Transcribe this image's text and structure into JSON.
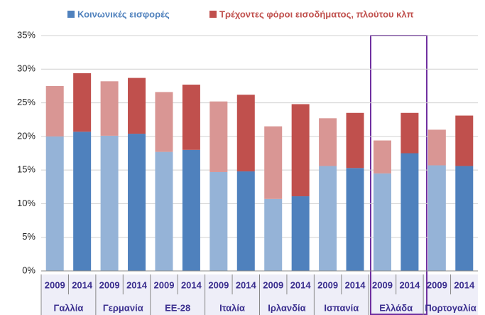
{
  "chart_data": {
    "type": "stacked_bar",
    "categories": [
      "2009",
      "2014",
      "2009",
      "2014",
      "2009",
      "2014",
      "2009",
      "2014",
      "2009",
      "2014",
      "2009",
      "2014",
      "2009",
      "2014",
      "2009",
      "2014"
    ],
    "groups": [
      "Γαλλία",
      "Γερμανία",
      "ΕΕ-28",
      "Ιταλία",
      "Ιρλανδία",
      "Ισπανία",
      "Ελλάδα",
      "Πορτογαλία"
    ],
    "series": [
      {
        "name": "Κοινωνικές εισφορές",
        "color": "#4f81bd",
        "colors": [
          "#95b3d7",
          "#4f81bd",
          "#95b3d7",
          "#4f81bd",
          "#95b3d7",
          "#4f81bd",
          "#95b3d7",
          "#4f81bd",
          "#95b3d7",
          "#4f81bd",
          "#95b3d7",
          "#4f81bd",
          "#95b3d7",
          "#4f81bd",
          "#95b3d7",
          "#4f81bd"
        ],
        "values": [
          20.0,
          20.7,
          20.1,
          20.4,
          17.7,
          18.0,
          14.7,
          14.8,
          10.7,
          11.1,
          15.6,
          15.3,
          14.5,
          17.5,
          15.7,
          15.6
        ]
      },
      {
        "name": "Τρέχοντες φόροι εισοδήματος, πλούτου κλπ",
        "color": "#c0504d",
        "colors": [
          "#d99694",
          "#c0504d",
          "#d99694",
          "#c0504d",
          "#d99694",
          "#c0504d",
          "#d99694",
          "#c0504d",
          "#d99694",
          "#c0504d",
          "#d99694",
          "#c0504d",
          "#d99694",
          "#c0504d",
          "#d99694",
          "#c0504d"
        ],
        "values": [
          7.5,
          8.7,
          8.1,
          8.3,
          8.9,
          9.7,
          10.5,
          11.4,
          10.8,
          13.7,
          7.1,
          8.2,
          4.9,
          6.0,
          5.3,
          7.5
        ]
      }
    ],
    "ylim": [
      0,
      35
    ],
    "yticks": [
      {
        "value": 0,
        "label": "0%"
      },
      {
        "value": 5,
        "label": "5%"
      },
      {
        "value": 10,
        "label": "10%"
      },
      {
        "value": 15,
        "label": "15%"
      },
      {
        "value": 20,
        "label": "20%"
      },
      {
        "value": 25,
        "label": "25%"
      },
      {
        "value": 30,
        "label": "30%"
      },
      {
        "value": 35,
        "label": "35%"
      }
    ],
    "grid": true
  }
}
